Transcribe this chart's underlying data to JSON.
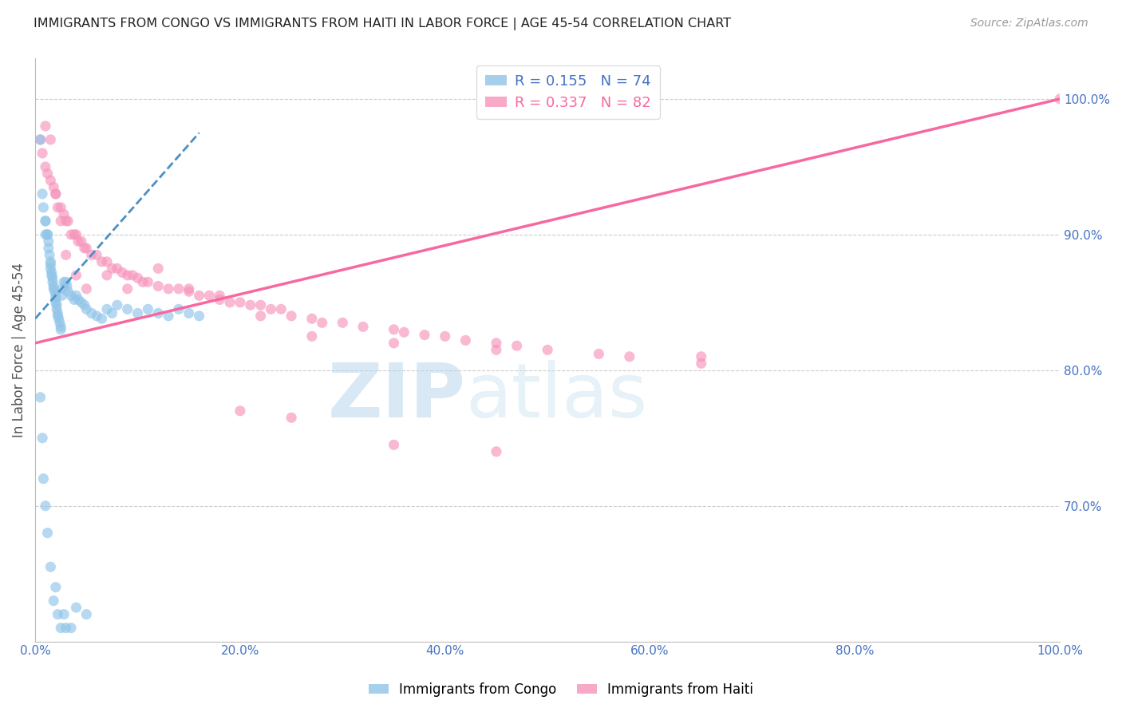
{
  "title": "IMMIGRANTS FROM CONGO VS IMMIGRANTS FROM HAITI IN LABOR FORCE | AGE 45-54 CORRELATION CHART",
  "source_text": "Source: ZipAtlas.com",
  "ylabel": "In Labor Force | Age 45-54",
  "xlim": [
    0.0,
    1.0
  ],
  "ylim": [
    0.6,
    1.03
  ],
  "xtick_values": [
    0.0,
    0.2,
    0.4,
    0.6,
    0.8,
    1.0
  ],
  "xtick_labels": [
    "0.0%",
    "20.0%",
    "40.0%",
    "60.0%",
    "80.0%",
    "100.0%"
  ],
  "ytick_values_right": [
    0.7,
    0.8,
    0.9,
    1.0
  ],
  "ytick_labels_right": [
    "70.0%",
    "80.0%",
    "90.0%",
    "100.0%"
  ],
  "congo_color": "#90c4e8",
  "haiti_color": "#f794bb",
  "congo_line_color": "#4a90c4",
  "haiti_line_color": "#f768a1",
  "congo_R": 0.155,
  "congo_N": 74,
  "haiti_R": 0.337,
  "haiti_N": 82,
  "legend_label_congo": "Immigrants from Congo",
  "legend_label_haiti": "Immigrants from Haiti",
  "title_color": "#222222",
  "source_color": "#999999",
  "axis_tick_color": "#4472c4",
  "right_tick_color": "#4472c4",
  "background_color": "#ffffff",
  "grid_color": "#cccccc",
  "watermark_color": "#d0e8f5",
  "congo_x": [
    0.005,
    0.007,
    0.008,
    0.01,
    0.01,
    0.01,
    0.012,
    0.012,
    0.013,
    0.013,
    0.014,
    0.015,
    0.015,
    0.015,
    0.016,
    0.016,
    0.017,
    0.017,
    0.018,
    0.018,
    0.019,
    0.02,
    0.02,
    0.02,
    0.021,
    0.021,
    0.022,
    0.022,
    0.023,
    0.024,
    0.025,
    0.025,
    0.026,
    0.027,
    0.028,
    0.03,
    0.031,
    0.032,
    0.035,
    0.038,
    0.04,
    0.042,
    0.045,
    0.048,
    0.05,
    0.055,
    0.06,
    0.065,
    0.07,
    0.075,
    0.08,
    0.09,
    0.1,
    0.11,
    0.12,
    0.13,
    0.14,
    0.15,
    0.16,
    0.005,
    0.007,
    0.008,
    0.01,
    0.012,
    0.015,
    0.018,
    0.02,
    0.022,
    0.025,
    0.028,
    0.03,
    0.035,
    0.04,
    0.05
  ],
  "congo_y": [
    0.97,
    0.93,
    0.92,
    0.91,
    0.91,
    0.9,
    0.9,
    0.9,
    0.895,
    0.89,
    0.885,
    0.88,
    0.878,
    0.875,
    0.872,
    0.87,
    0.868,
    0.865,
    0.862,
    0.86,
    0.858,
    0.855,
    0.853,
    0.85,
    0.848,
    0.845,
    0.842,
    0.84,
    0.838,
    0.835,
    0.832,
    0.83,
    0.855,
    0.86,
    0.865,
    0.865,
    0.862,
    0.858,
    0.855,
    0.852,
    0.855,
    0.852,
    0.85,
    0.848,
    0.845,
    0.842,
    0.84,
    0.838,
    0.845,
    0.842,
    0.848,
    0.845,
    0.842,
    0.845,
    0.842,
    0.84,
    0.845,
    0.842,
    0.84,
    0.78,
    0.75,
    0.72,
    0.7,
    0.68,
    0.655,
    0.63,
    0.64,
    0.62,
    0.61,
    0.62,
    0.61,
    0.61,
    0.625,
    0.62
  ],
  "haiti_x": [
    0.005,
    0.007,
    0.01,
    0.012,
    0.015,
    0.018,
    0.02,
    0.022,
    0.025,
    0.028,
    0.03,
    0.032,
    0.035,
    0.038,
    0.04,
    0.042,
    0.045,
    0.048,
    0.05,
    0.055,
    0.06,
    0.065,
    0.07,
    0.075,
    0.08,
    0.085,
    0.09,
    0.095,
    0.1,
    0.105,
    0.11,
    0.12,
    0.13,
    0.14,
    0.15,
    0.16,
    0.17,
    0.18,
    0.19,
    0.2,
    0.21,
    0.22,
    0.23,
    0.24,
    0.25,
    0.27,
    0.28,
    0.3,
    0.32,
    0.35,
    0.36,
    0.38,
    0.4,
    0.42,
    0.45,
    0.47,
    0.5,
    0.55,
    0.65,
    1.0,
    0.01,
    0.015,
    0.02,
    0.025,
    0.03,
    0.04,
    0.05,
    0.07,
    0.09,
    0.12,
    0.15,
    0.18,
    0.22,
    0.27,
    0.35,
    0.45,
    0.58,
    0.65,
    0.2,
    0.25,
    0.35,
    0.45
  ],
  "haiti_y": [
    0.97,
    0.96,
    0.95,
    0.945,
    0.94,
    0.935,
    0.93,
    0.92,
    0.92,
    0.915,
    0.91,
    0.91,
    0.9,
    0.9,
    0.9,
    0.895,
    0.895,
    0.89,
    0.89,
    0.885,
    0.885,
    0.88,
    0.88,
    0.875,
    0.875,
    0.872,
    0.87,
    0.87,
    0.868,
    0.865,
    0.865,
    0.862,
    0.86,
    0.86,
    0.858,
    0.855,
    0.855,
    0.852,
    0.85,
    0.85,
    0.848,
    0.848,
    0.845,
    0.845,
    0.84,
    0.838,
    0.835,
    0.835,
    0.832,
    0.83,
    0.828,
    0.826,
    0.825,
    0.822,
    0.82,
    0.818,
    0.815,
    0.812,
    0.81,
    1.0,
    0.98,
    0.97,
    0.93,
    0.91,
    0.885,
    0.87,
    0.86,
    0.87,
    0.86,
    0.875,
    0.86,
    0.855,
    0.84,
    0.825,
    0.82,
    0.815,
    0.81,
    0.805,
    0.77,
    0.765,
    0.745,
    0.74
  ],
  "haiti_line_x0": 0.0,
  "haiti_line_x1": 1.0,
  "haiti_line_y0": 0.82,
  "haiti_line_y1": 1.0,
  "congo_line_x0": 0.0,
  "congo_line_x1": 0.16,
  "congo_line_y0": 0.838,
  "congo_line_y1": 0.975
}
